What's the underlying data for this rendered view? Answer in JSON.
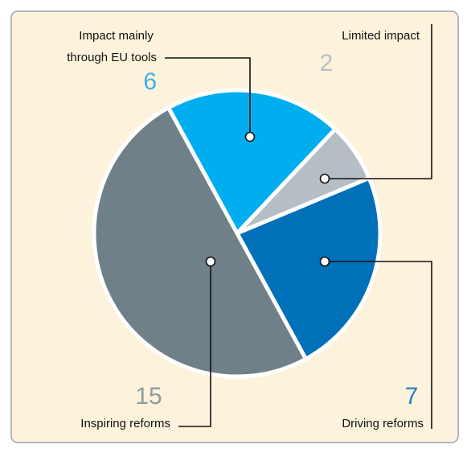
{
  "chart_data": {
    "type": "pie",
    "categories": [
      [
        "Impact mainly",
        "through EU tools"
      ],
      [
        "Limited impact"
      ],
      [
        "Driving reforms"
      ],
      [
        "Inspiring reforms"
      ]
    ],
    "values": [
      6,
      2,
      7,
      15
    ],
    "colors": [
      "#00aeef",
      "#b5bec4",
      "#0070b8",
      "#6f8088"
    ],
    "value_colors": [
      "#3fb0e6",
      "#b9c0c5",
      "#2a80c2",
      "#8e9ba1"
    ]
  }
}
